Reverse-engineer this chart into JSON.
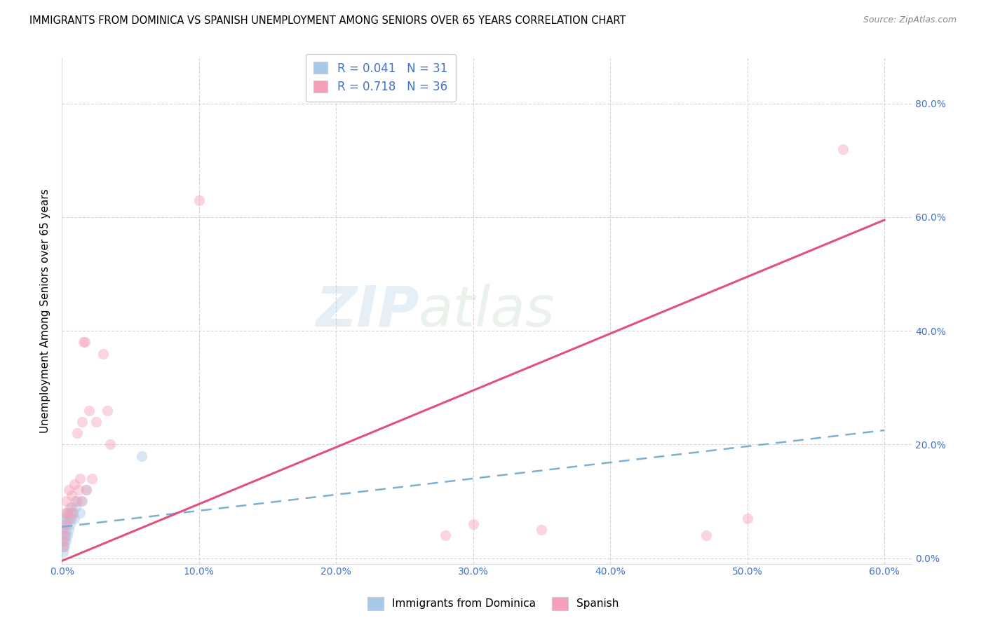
{
  "title": "IMMIGRANTS FROM DOMINICA VS SPANISH UNEMPLOYMENT AMONG SENIORS OVER 65 YEARS CORRELATION CHART",
  "source": "Source: ZipAtlas.com",
  "ylabel": "Unemployment Among Seniors over 65 years",
  "watermark_zip": "ZIP",
  "watermark_atlas": "atlas",
  "xlim": [
    0.0,
    0.62
  ],
  "ylim": [
    -0.01,
    0.88
  ],
  "yticks": [
    0.0,
    0.2,
    0.4,
    0.6,
    0.8
  ],
  "xticks": [
    0.0,
    0.1,
    0.2,
    0.3,
    0.4,
    0.5,
    0.6
  ],
  "blue_R": 0.041,
  "blue_N": 31,
  "pink_R": 0.718,
  "pink_N": 36,
  "blue_color": "#a8c8e8",
  "pink_color": "#f4a0b8",
  "blue_line_color": "#7bafd4",
  "pink_line_color": "#e05080",
  "blue_line_x0": 0.0,
  "blue_line_y0": 0.055,
  "blue_line_x1": 0.6,
  "blue_line_y1": 0.225,
  "pink_line_x0": 0.0,
  "pink_line_y0": -0.005,
  "pink_line_x1": 0.6,
  "pink_line_y1": 0.595,
  "blue_scatter_x": [
    0.001,
    0.001,
    0.001,
    0.001,
    0.001,
    0.002,
    0.002,
    0.002,
    0.002,
    0.002,
    0.003,
    0.003,
    0.003,
    0.003,
    0.004,
    0.004,
    0.004,
    0.005,
    0.005,
    0.006,
    0.006,
    0.007,
    0.007,
    0.008,
    0.009,
    0.01,
    0.011,
    0.013,
    0.015,
    0.018,
    0.058
  ],
  "blue_scatter_y": [
    0.01,
    0.02,
    0.03,
    0.04,
    0.05,
    0.02,
    0.03,
    0.04,
    0.06,
    0.07,
    0.03,
    0.04,
    0.05,
    0.07,
    0.04,
    0.06,
    0.08,
    0.05,
    0.07,
    0.06,
    0.08,
    0.07,
    0.09,
    0.08,
    0.07,
    0.09,
    0.1,
    0.08,
    0.1,
    0.12,
    0.18
  ],
  "pink_scatter_x": [
    0.001,
    0.001,
    0.001,
    0.002,
    0.002,
    0.003,
    0.003,
    0.004,
    0.005,
    0.006,
    0.006,
    0.007,
    0.008,
    0.009,
    0.01,
    0.011,
    0.012,
    0.013,
    0.014,
    0.015,
    0.016,
    0.017,
    0.018,
    0.02,
    0.022,
    0.025,
    0.03,
    0.033,
    0.035,
    0.1,
    0.28,
    0.3,
    0.35,
    0.47,
    0.5,
    0.57
  ],
  "pink_scatter_y": [
    0.02,
    0.03,
    0.05,
    0.04,
    0.08,
    0.06,
    0.1,
    0.08,
    0.12,
    0.07,
    0.09,
    0.11,
    0.08,
    0.13,
    0.1,
    0.22,
    0.12,
    0.14,
    0.1,
    0.24,
    0.38,
    0.38,
    0.12,
    0.26,
    0.14,
    0.24,
    0.36,
    0.26,
    0.2,
    0.63,
    0.04,
    0.06,
    0.05,
    0.04,
    0.07,
    0.72
  ],
  "title_fontsize": 10.5,
  "axis_label_fontsize": 11,
  "tick_fontsize": 10,
  "scatter_size": 120,
  "scatter_alpha": 0.45,
  "grid_color": "#cccccc",
  "grid_alpha": 0.8,
  "tick_color": "#4472c4"
}
